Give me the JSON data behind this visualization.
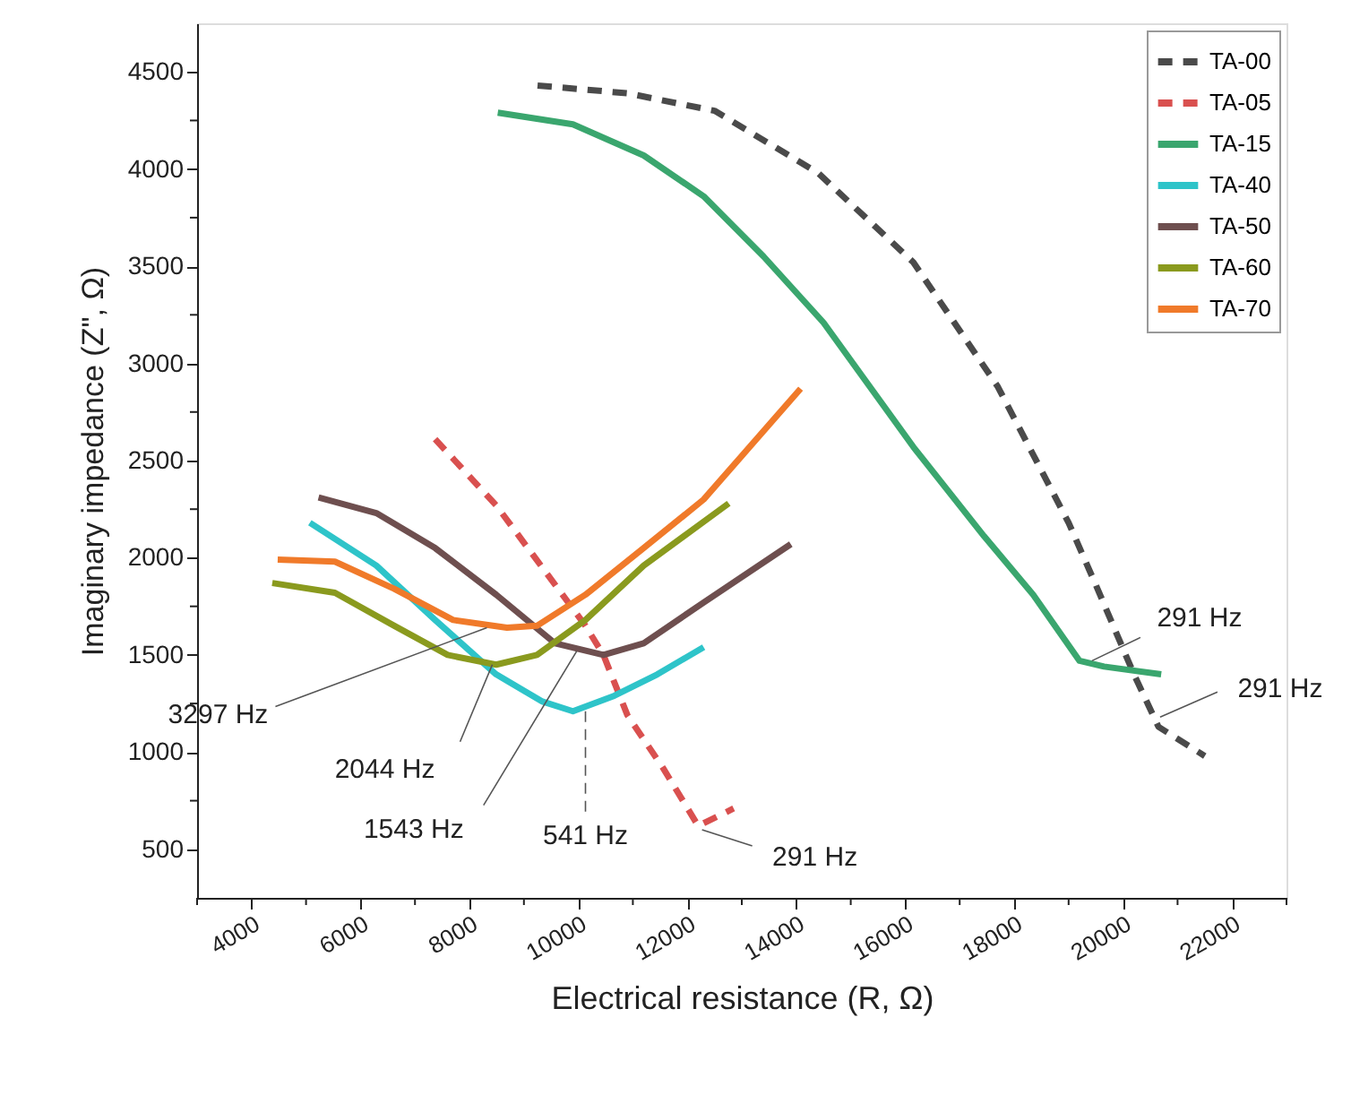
{
  "chart_data": {
    "type": "line",
    "xlabel": "Electrical resistance (R, Ω)",
    "ylabel": "Imaginary impedance (Z\", Ω)",
    "xlim": [
      3000,
      23000
    ],
    "xticks": [
      {
        "value": 3000,
        "label": null
      },
      4000,
      {
        "value": 5000,
        "label": null
      },
      6000,
      {
        "value": 7000,
        "label": null
      },
      8000,
      {
        "value": 9000,
        "label": null
      },
      10000,
      {
        "value": 11000,
        "label": null
      },
      12000,
      {
        "value": 13000,
        "label": null
      },
      14000,
      {
        "value": 15000,
        "label": null
      },
      16000,
      {
        "value": 17000,
        "label": null
      },
      18000,
      {
        "value": 19000,
        "label": null
      },
      20000,
      {
        "value": 21000,
        "label": null
      },
      22000,
      {
        "value": 23000,
        "label": null
      }
    ],
    "ylim": [
      250,
      4750
    ],
    "yticks": [
      500,
      {
        "value": 750,
        "label": null
      },
      1000,
      {
        "value": 1250,
        "label": null
      },
      1500,
      {
        "value": 1750,
        "label": null
      },
      2000,
      {
        "value": 2250,
        "label": null
      },
      2500,
      {
        "value": 2750,
        "label": null
      },
      3000,
      {
        "value": 3250,
        "label": null
      },
      3500,
      {
        "value": 3750,
        "label": null
      },
      4000,
      {
        "value": 4250,
        "label": null
      },
      4500
    ],
    "grid": false,
    "legend": "top right",
    "marker": "none",
    "series": [
      {
        "name": "TA-00",
        "color": "#4a4a4a",
        "line_style": "dashed",
        "x": [
          9250,
          10900,
          12500,
          14400,
          16150,
          17700,
          19000,
          19500,
          20200,
          20650,
          21500
        ],
        "values": [
          4430,
          4390,
          4300,
          3980,
          3520,
          2880,
          2180,
          1860,
          1400,
          1130,
          980
        ]
      },
      {
        "name": "TA-05",
        "color": "#d9504f",
        "line_style": "dashed",
        "x": [
          7370,
          8490,
          9470,
          10130,
          10460,
          10900,
          11550,
          12200,
          12850
        ],
        "values": [
          2610,
          2270,
          1900,
          1650,
          1500,
          1190,
          920,
          620,
          710
        ]
      },
      {
        "name": "TA-15",
        "color": "#3aa66e",
        "line_style": "solid",
        "x": [
          8520,
          9900,
          11200,
          12300,
          13400,
          14500,
          16150,
          17450,
          18350,
          19200,
          19650,
          20700
        ],
        "values": [
          4290,
          4230,
          4070,
          3860,
          3550,
          3210,
          2570,
          2110,
          1810,
          1470,
          1440,
          1400
        ]
      },
      {
        "name": "TA-40",
        "color": "#2ec4c9",
        "line_style": "solid",
        "x": [
          5070,
          6290,
          7370,
          8490,
          9340,
          9900,
          10660,
          11450,
          12300
        ],
        "values": [
          2180,
          1960,
          1680,
          1400,
          1260,
          1210,
          1290,
          1400,
          1540
        ]
      },
      {
        "name": "TA-50",
        "color": "#6e4f4f",
        "line_style": "solid",
        "x": [
          5230,
          6290,
          7370,
          8490,
          9570,
          10460,
          11200,
          12300,
          13900
        ],
        "values": [
          2310,
          2230,
          2050,
          1810,
          1560,
          1500,
          1560,
          1770,
          2070
        ]
      },
      {
        "name": "TA-60",
        "color": "#8a9a1e",
        "line_style": "solid",
        "x": [
          4380,
          5530,
          6620,
          7600,
          8490,
          9240,
          10130,
          11200,
          12760
        ],
        "values": [
          1870,
          1820,
          1650,
          1500,
          1450,
          1500,
          1680,
          1960,
          2280
        ]
      },
      {
        "name": "TA-70",
        "color": "#f07a2a",
        "line_style": "solid",
        "x": [
          4480,
          5530,
          6620,
          7700,
          8690,
          9240,
          10130,
          11200,
          12300,
          14080
        ],
        "values": [
          1990,
          1980,
          1840,
          1680,
          1640,
          1650,
          1810,
          2050,
          2300,
          2870
        ]
      }
    ],
    "annotations": [
      {
        "text": "3297 Hz",
        "x": 8320,
        "y": 1640
      },
      {
        "text": "2044 Hz",
        "x": 8420,
        "y": 1450
      },
      {
        "text": "1543 Hz",
        "x": 9970,
        "y": 1520
      },
      {
        "text": "541 Hz",
        "x": 10130,
        "y": 1210
      },
      {
        "text": "291 Hz",
        "x": 12270,
        "y": 600
      },
      {
        "text": "291 Hz",
        "x": 19430,
        "y": 1470
      },
      {
        "text": "291 Hz",
        "x": 20680,
        "y": 1180
      }
    ]
  }
}
